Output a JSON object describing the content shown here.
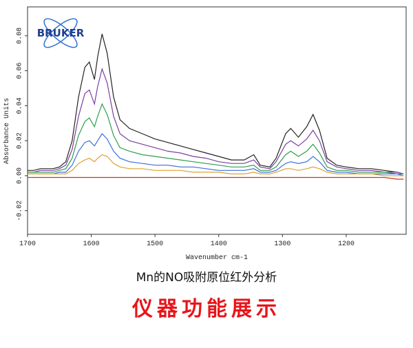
{
  "chart_data": {
    "type": "line",
    "xlabel": "Wavenumber cm-1",
    "ylabel": "Absorbance Units",
    "x": [
      1700,
      1690,
      1680,
      1670,
      1660,
      1650,
      1640,
      1630,
      1620,
      1610,
      1603,
      1595,
      1590,
      1583,
      1575,
      1565,
      1555,
      1540,
      1520,
      1500,
      1480,
      1460,
      1440,
      1420,
      1400,
      1380,
      1360,
      1345,
      1335,
      1320,
      1310,
      1295,
      1287,
      1275,
      1262,
      1252,
      1242,
      1230,
      1215,
      1200,
      1180,
      1160,
      1140,
      1120,
      1110
    ],
    "series": [
      {
        "color": "#222222",
        "values": [
          0.003,
          0.003,
          0.004,
          0.004,
          0.004,
          0.005,
          0.008,
          0.02,
          0.045,
          0.062,
          0.065,
          0.055,
          0.068,
          0.081,
          0.07,
          0.045,
          0.032,
          0.027,
          0.024,
          0.021,
          0.019,
          0.017,
          0.015,
          0.013,
          0.011,
          0.009,
          0.009,
          0.012,
          0.006,
          0.005,
          0.01,
          0.024,
          0.027,
          0.022,
          0.028,
          0.035,
          0.026,
          0.01,
          0.006,
          0.005,
          0.004,
          0.004,
          0.003,
          0.002,
          0.001
        ]
      },
      {
        "color": "#7b3fa0",
        "values": [
          0.002,
          0.002,
          0.003,
          0.003,
          0.003,
          0.004,
          0.006,
          0.015,
          0.034,
          0.047,
          0.049,
          0.041,
          0.051,
          0.061,
          0.053,
          0.034,
          0.024,
          0.02,
          0.018,
          0.016,
          0.014,
          0.013,
          0.011,
          0.01,
          0.008,
          0.007,
          0.007,
          0.009,
          0.005,
          0.004,
          0.008,
          0.018,
          0.02,
          0.017,
          0.021,
          0.026,
          0.02,
          0.008,
          0.005,
          0.004,
          0.003,
          0.003,
          0.002,
          0.002,
          0.001
        ]
      },
      {
        "color": "#2e9e4a",
        "values": [
          0.002,
          0.002,
          0.002,
          0.002,
          0.002,
          0.003,
          0.004,
          0.01,
          0.023,
          0.031,
          0.033,
          0.028,
          0.034,
          0.041,
          0.035,
          0.023,
          0.016,
          0.014,
          0.012,
          0.011,
          0.01,
          0.009,
          0.008,
          0.007,
          0.006,
          0.005,
          0.005,
          0.006,
          0.003,
          0.003,
          0.005,
          0.012,
          0.014,
          0.011,
          0.014,
          0.018,
          0.013,
          0.005,
          0.003,
          0.003,
          0.002,
          0.002,
          0.002,
          0.001,
          0.001
        ]
      },
      {
        "color": "#3a6fd8",
        "values": [
          0.001,
          0.001,
          0.001,
          0.001,
          0.001,
          0.002,
          0.002,
          0.006,
          0.014,
          0.019,
          0.02,
          0.017,
          0.02,
          0.024,
          0.021,
          0.014,
          0.01,
          0.008,
          0.007,
          0.006,
          0.006,
          0.005,
          0.005,
          0.004,
          0.003,
          0.003,
          0.003,
          0.004,
          0.002,
          0.002,
          0.003,
          0.007,
          0.008,
          0.007,
          0.008,
          0.011,
          0.008,
          0.003,
          0.002,
          0.002,
          0.001,
          0.001,
          0.001,
          0.001,
          0.0
        ]
      },
      {
        "color": "#e0a030",
        "values": [
          0.001,
          0.001,
          0.001,
          0.001,
          0.001,
          0.001,
          0.001,
          0.003,
          0.007,
          0.009,
          0.01,
          0.008,
          0.01,
          0.012,
          0.011,
          0.007,
          0.005,
          0.004,
          0.004,
          0.003,
          0.003,
          0.003,
          0.002,
          0.002,
          0.002,
          0.001,
          0.001,
          0.002,
          0.001,
          0.001,
          0.002,
          0.004,
          0.004,
          0.003,
          0.004,
          0.005,
          0.004,
          0.002,
          0.001,
          0.001,
          0.001,
          0.001,
          0.0,
          0.0,
          0.0
        ]
      },
      {
        "color": "#c0392b",
        "values": [
          -0.001,
          -0.001,
          -0.001,
          -0.001,
          -0.001,
          -0.001,
          -0.001,
          -0.001,
          -0.001,
          -0.001,
          -0.001,
          -0.001,
          -0.001,
          -0.001,
          -0.001,
          -0.001,
          -0.001,
          -0.001,
          -0.001,
          -0.001,
          -0.001,
          -0.001,
          -0.001,
          -0.001,
          -0.001,
          -0.001,
          -0.001,
          -0.001,
          -0.001,
          -0.001,
          -0.001,
          -0.001,
          -0.001,
          -0.001,
          -0.001,
          -0.001,
          -0.001,
          -0.001,
          -0.001,
          -0.001,
          -0.001,
          -0.001,
          -0.001,
          -0.002,
          -0.002
        ]
      }
    ],
    "xlim": [
      1700,
      1106
    ],
    "xticks": [
      1700,
      1600,
      1500,
      1400,
      1300,
      1200
    ],
    "ylim": [
      -0.0335,
      0.0965
    ],
    "yticks": [
      -0.02,
      {
        "value": 0,
        "label": "0.00"
      },
      0.02,
      0.04,
      0.06,
      0.08
    ]
  },
  "logo": "BRUKER",
  "caption": "Mn的NO吸附原位红外分析",
  "banner": "仪器功能展示"
}
